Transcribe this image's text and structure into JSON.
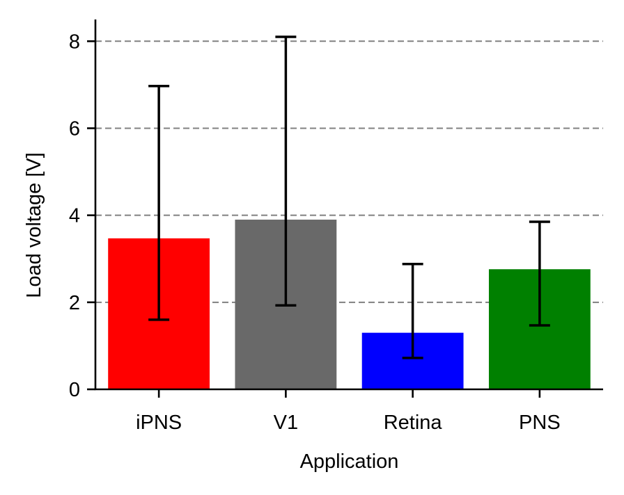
{
  "chart_data": {
    "type": "bar",
    "categories": [
      "iPNS",
      "V1",
      "Retina",
      "PNS"
    ],
    "values": [
      3.47,
      3.9,
      1.3,
      2.76
    ],
    "error_low": [
      1.6,
      1.93,
      0.72,
      1.47
    ],
    "error_high": [
      6.97,
      8.1,
      2.88,
      3.85
    ],
    "colors": [
      "#ff0000",
      "#696969",
      "#0000ff",
      "#008000"
    ],
    "xlabel": "Application",
    "ylabel": "Load voltage [V]",
    "ylim": [
      0,
      8.5
    ],
    "yticks": [
      0,
      2,
      4,
      6,
      8
    ],
    "grid": "y dashed at 2, 4, 6, 8",
    "grid_color": "#808080"
  }
}
